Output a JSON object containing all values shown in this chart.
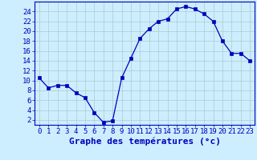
{
  "hours": [
    0,
    1,
    2,
    3,
    4,
    5,
    6,
    7,
    8,
    9,
    10,
    11,
    12,
    13,
    14,
    15,
    16,
    17,
    18,
    19,
    20,
    21,
    22,
    23
  ],
  "temps": [
    10.5,
    8.5,
    9.0,
    9.0,
    7.5,
    6.5,
    3.5,
    1.5,
    1.8,
    10.5,
    14.5,
    18.5,
    20.5,
    22.0,
    22.5,
    24.5,
    25.0,
    24.5,
    23.5,
    22.0,
    18.0,
    15.5,
    15.5,
    14.0
  ],
  "line_color": "#0000bb",
  "marker": "s",
  "bg_color": "#cceeff",
  "grid_color": "#aacccc",
  "axis_color": "#0000bb",
  "xlabel": "Graphe des températures (°c)",
  "ylabel_ticks": [
    2,
    4,
    6,
    8,
    10,
    12,
    14,
    16,
    18,
    20,
    22,
    24
  ],
  "ylim": [
    1,
    26
  ],
  "xlim": [
    -0.5,
    23.5
  ],
  "xlabel_fontsize": 8,
  "tick_fontsize": 6.5
}
